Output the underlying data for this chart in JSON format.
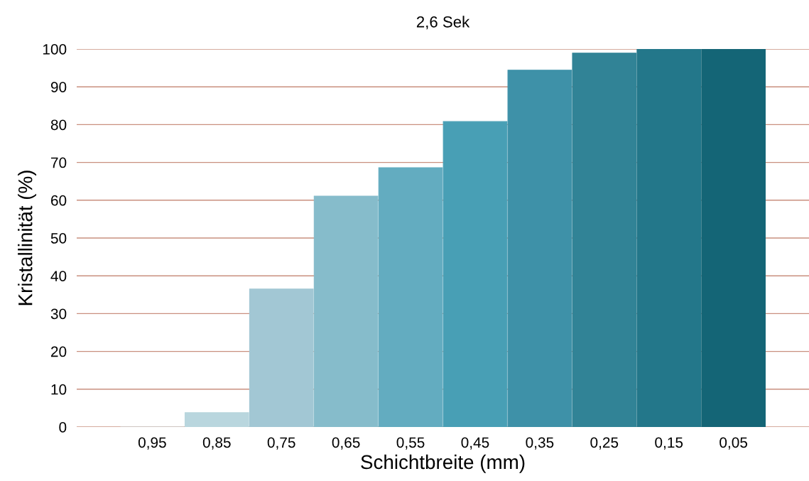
{
  "chart_data": {
    "type": "bar",
    "title": "2,6 Sek",
    "xlabel": "Schichtbreite (mm)",
    "ylabel": "Kristallinität (%)",
    "categories": [
      "0,95",
      "0,85",
      "0,75",
      "0,65",
      "0,55",
      "0,45",
      "0,35",
      "0,25",
      "0,15",
      "0,05"
    ],
    "values": [
      0,
      3.8,
      36.5,
      61.1,
      68.6,
      80.8,
      94.4,
      98.9,
      100,
      100
    ],
    "colors": [
      "#c5dde4",
      "#b9d6de",
      "#a2c7d4",
      "#86bccb",
      "#63acc0",
      "#489fb5",
      "#3e91a8",
      "#318396",
      "#23778a",
      "#146576"
    ],
    "ylim": [
      0,
      100
    ],
    "yticks": [
      0,
      10,
      20,
      30,
      40,
      50,
      60,
      70,
      80,
      90,
      100
    ],
    "grid": "y"
  }
}
